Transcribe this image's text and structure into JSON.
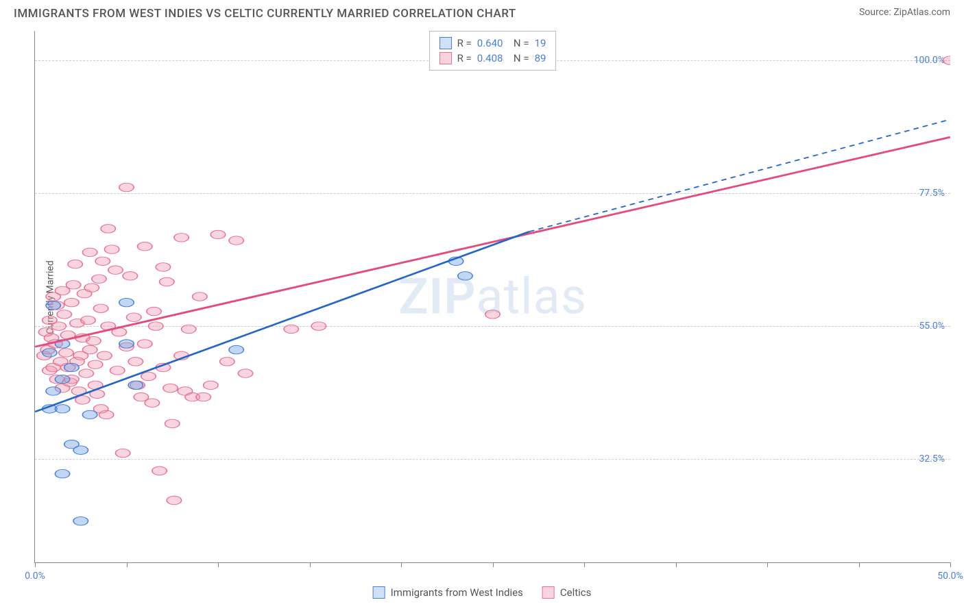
{
  "title": "IMMIGRANTS FROM WEST INDIES VS CELTIC CURRENTLY MARRIED CORRELATION CHART",
  "source": "Source: ZipAtlas.com",
  "watermark_a": "ZIP",
  "watermark_b": "atlas",
  "y_axis_label": "Currently Married",
  "chart": {
    "type": "scatter-with-regression",
    "xlim": [
      0,
      50
    ],
    "ylim": [
      15,
      105
    ],
    "x_ticks": [
      0,
      5,
      10,
      15,
      20,
      25,
      30,
      35,
      40,
      45,
      50
    ],
    "x_tick_labels": {
      "0": "0.0%",
      "50": "50.0%"
    },
    "y_ticks": [
      32.5,
      55.0,
      77.5,
      100.0
    ],
    "y_tick_labels": [
      "32.5%",
      "55.0%",
      "77.5%",
      "100.0%"
    ],
    "grid_color": "#cccccc",
    "background_color": "#ffffff",
    "series": [
      {
        "name": "Immigrants from West Indies",
        "color_fill": "rgba(118,167,230,0.45)",
        "color_stroke": "#4a7fd8",
        "swatch_fill": "#cfe0f7",
        "swatch_stroke": "#4a7fd8",
        "R": "0.640",
        "N": "19",
        "marker_radius": 8,
        "points": [
          [
            1.0,
            58.5
          ],
          [
            0.8,
            41.0
          ],
          [
            1.5,
            41.0
          ],
          [
            1.5,
            52.0
          ],
          [
            0.8,
            50.5
          ],
          [
            2.0,
            35.0
          ],
          [
            2.5,
            34.0
          ],
          [
            1.5,
            30.0
          ],
          [
            2.5,
            22.0
          ],
          [
            5.0,
            59.0
          ],
          [
            5.5,
            45.0
          ],
          [
            5.0,
            52.0
          ],
          [
            11.0,
            51.0
          ],
          [
            23.0,
            66.0
          ],
          [
            23.5,
            63.5
          ],
          [
            1.0,
            44.0
          ],
          [
            2.0,
            48.0
          ],
          [
            1.5,
            46.0
          ],
          [
            3.0,
            40.0
          ]
        ],
        "regression": {
          "solid": {
            "x1": 0,
            "y1": 40.5,
            "x2": 27,
            "y2": 71.0
          },
          "dashed": {
            "x1": 27,
            "y1": 71.0,
            "x2": 50,
            "y2": 90.0
          },
          "stroke": "#2465c9",
          "dash_pattern": "6,5",
          "width": 2.2
        }
      },
      {
        "name": "Celtics",
        "color_fill": "rgba(240,150,175,0.40)",
        "color_stroke": "#e87095",
        "swatch_fill": "#f9d4de",
        "swatch_stroke": "#e87095",
        "R": "0.408",
        "N": "89",
        "marker_radius": 8,
        "points": [
          [
            0.5,
            50.0
          ],
          [
            0.7,
            51.0
          ],
          [
            0.8,
            47.5
          ],
          [
            0.9,
            53.0
          ],
          [
            1.0,
            48.0
          ],
          [
            1.1,
            52.0
          ],
          [
            1.2,
            46.0
          ],
          [
            1.3,
            55.0
          ],
          [
            1.4,
            49.0
          ],
          [
            1.5,
            44.5
          ],
          [
            1.6,
            57.0
          ],
          [
            1.7,
            50.5
          ],
          [
            1.8,
            53.5
          ],
          [
            1.9,
            45.5
          ],
          [
            2.0,
            59.0
          ],
          [
            2.1,
            62.0
          ],
          [
            2.2,
            65.5
          ],
          [
            2.3,
            55.5
          ],
          [
            2.4,
            44.0
          ],
          [
            2.5,
            50.0
          ],
          [
            2.6,
            53.0
          ],
          [
            2.7,
            60.5
          ],
          [
            2.8,
            47.0
          ],
          [
            2.9,
            56.0
          ],
          [
            3.0,
            67.5
          ],
          [
            3.1,
            61.5
          ],
          [
            3.2,
            52.5
          ],
          [
            3.3,
            48.5
          ],
          [
            3.4,
            43.5
          ],
          [
            3.5,
            63.0
          ],
          [
            3.6,
            58.0
          ],
          [
            3.7,
            66.0
          ],
          [
            3.8,
            50.0
          ],
          [
            3.9,
            40.0
          ],
          [
            4.0,
            71.5
          ],
          [
            4.2,
            68.0
          ],
          [
            4.4,
            64.5
          ],
          [
            4.6,
            54.0
          ],
          [
            4.8,
            33.5
          ],
          [
            5.0,
            78.5
          ],
          [
            5.2,
            63.5
          ],
          [
            5.4,
            56.5
          ],
          [
            5.6,
            45.0
          ],
          [
            5.8,
            43.0
          ],
          [
            6.0,
            68.5
          ],
          [
            6.2,
            46.5
          ],
          [
            6.4,
            42.0
          ],
          [
            6.6,
            55.0
          ],
          [
            6.8,
            30.5
          ],
          [
            7.0,
            65.0
          ],
          [
            7.2,
            62.5
          ],
          [
            7.4,
            44.5
          ],
          [
            7.6,
            25.5
          ],
          [
            8.0,
            70.0
          ],
          [
            8.2,
            44.0
          ],
          [
            8.4,
            54.5
          ],
          [
            8.6,
            43.0
          ],
          [
            9.0,
            60.0
          ],
          [
            9.2,
            43.0
          ],
          [
            9.6,
            45.0
          ],
          [
            10.0,
            70.5
          ],
          [
            10.5,
            49.0
          ],
          [
            11.0,
            69.5
          ],
          [
            11.5,
            47.0
          ],
          [
            14.0,
            54.5
          ],
          [
            15.5,
            55.0
          ],
          [
            25.0,
            57.0
          ],
          [
            50.0,
            100.0
          ],
          [
            0.6,
            54.0
          ],
          [
            0.8,
            56.0
          ],
          [
            1.0,
            60.0
          ],
          [
            1.2,
            58.5
          ],
          [
            1.5,
            61.0
          ],
          [
            1.8,
            48.0
          ],
          [
            2.0,
            46.0
          ],
          [
            2.3,
            49.0
          ],
          [
            2.6,
            42.5
          ],
          [
            3.0,
            51.0
          ],
          [
            3.3,
            45.0
          ],
          [
            3.6,
            41.0
          ],
          [
            4.0,
            55.0
          ],
          [
            4.5,
            47.5
          ],
          [
            5.0,
            51.5
          ],
          [
            5.5,
            49.0
          ],
          [
            6.0,
            52.0
          ],
          [
            6.5,
            57.5
          ],
          [
            7.0,
            48.0
          ],
          [
            7.5,
            38.5
          ],
          [
            8.0,
            50.0
          ]
        ],
        "regression": {
          "solid": {
            "x1": 0,
            "y1": 51.5,
            "x2": 50,
            "y2": 87.0
          },
          "stroke": "#e54b7a",
          "width": 2.5
        }
      }
    ]
  },
  "legend_bottom": [
    {
      "label": "Immigrants from West Indies",
      "swatch_fill": "#cfe0f7",
      "swatch_stroke": "#4a7fd8"
    },
    {
      "label": "Celtics",
      "swatch_fill": "#f9d4de",
      "swatch_stroke": "#e87095"
    }
  ]
}
